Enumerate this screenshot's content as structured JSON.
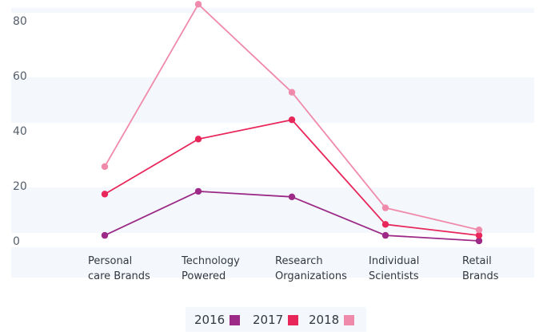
{
  "chart_data": {
    "type": "line",
    "title": "",
    "xlabel": "",
    "ylabel": "",
    "ylim": [
      0,
      85
    ],
    "yticks": [
      0,
      20,
      40,
      60,
      80
    ],
    "grid": "alternating horizontal bands",
    "legend_position": "bottom-center",
    "categories": [
      [
        "Personal",
        "care Brands"
      ],
      [
        "Technology",
        "Powered"
      ],
      [
        "Research",
        "Organizations"
      ],
      [
        "Individual",
        "Scientists"
      ],
      [
        "Retail",
        "Brands"
      ]
    ],
    "series": [
      {
        "name": "2016",
        "color": "#9c2a86",
        "values": [
          2,
          18,
          16,
          2,
          0
        ]
      },
      {
        "name": "2017",
        "color": "#e8265a",
        "values": [
          17,
          37,
          44,
          6,
          2
        ]
      },
      {
        "name": "2018",
        "color": "#f08aaa",
        "values": [
          27,
          86,
          54,
          12,
          4
        ]
      }
    ]
  }
}
